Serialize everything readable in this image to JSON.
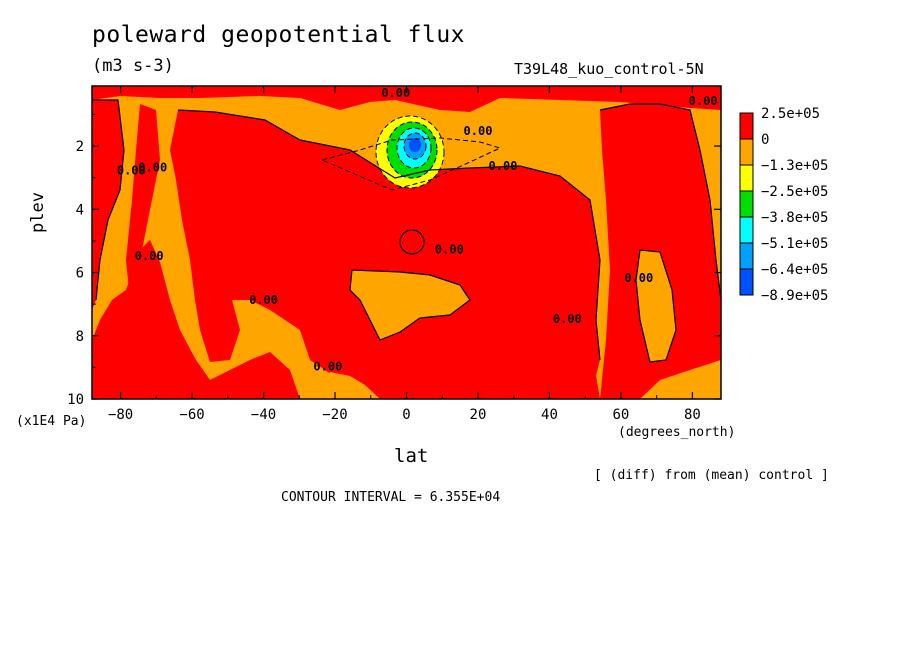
{
  "title": "poleward geopotential flux",
  "units": "(m3 s-3)",
  "run_label": "T39L48_kuo_control-5N",
  "note": "[ (diff) from (mean) control ]",
  "contour_interval_text": "CONTOUR INTERVAL = 6.355E+04",
  "colors": {
    "red": "#ff0000",
    "orange": "#ffa500",
    "yellow": "#ffff00",
    "green": "#00e000",
    "cyan": "#00ffff",
    "midblue": "#00a0ff",
    "blue": "#0050ff"
  },
  "chart_data": {
    "type": "heatmap",
    "title": "poleward geopotential flux",
    "xlabel": "lat",
    "xunit": "(degrees_north)",
    "ylabel": "plev",
    "yunit": "(x1E4 Pa)",
    "xlim": [
      -88,
      88
    ],
    "ylim": [
      10,
      0.1
    ],
    "y_inverted": true,
    "x_ticks": [
      -80,
      -60,
      -40,
      -20,
      0,
      20,
      40,
      60,
      80
    ],
    "x_tick_labels": [
      "−80",
      "−60",
      "−40",
      "−20",
      "0",
      "20",
      "40",
      "60",
      "80"
    ],
    "y_ticks": [
      2,
      4,
      6,
      8,
      10
    ],
    "y_tick_labels": [
      "2",
      "4",
      "6",
      "8",
      "10"
    ],
    "colorbar": {
      "placement": "right",
      "labels": [
        "2.5e+05",
        "0",
        "−1.3e+05",
        "−2.5e+05",
        "−3.8e+05",
        "−5.1e+05",
        "−6.4e+05",
        "−8.9e+05"
      ],
      "colors": [
        "#ff0000",
        "#ffa500",
        "#ffff00",
        "#00e000",
        "#00ffff",
        "#00a0ff",
        "#0050ff"
      ]
    },
    "contour_label": "0.00",
    "contour_labels": [
      {
        "text": "0.00",
        "lat": -3,
        "plev": 0.45
      },
      {
        "text": "0.00",
        "lat": 20,
        "plev": 1.65
      },
      {
        "text": "0.00",
        "lat": 27,
        "plev": 2.75
      },
      {
        "text": "0.00",
        "lat": 83,
        "plev": 0.7
      },
      {
        "text": "0.00",
        "lat": -77,
        "plev": 2.9
      },
      {
        "text": "0.00",
        "lat": -71,
        "plev": 2.8
      },
      {
        "text": "0.00",
        "lat": -72,
        "plev": 5.6
      },
      {
        "text": "0.00",
        "lat": -40,
        "plev": 7.0
      },
      {
        "text": "0.00",
        "lat": 12,
        "plev": 5.4
      },
      {
        "text": "0.00",
        "lat": -22,
        "plev": 9.1
      },
      {
        "text": "0.00",
        "lat": 45,
        "plev": 7.6
      },
      {
        "text": "0.00",
        "lat": 65,
        "plev": 6.3
      }
    ],
    "anomaly_center": {
      "lat": 2,
      "plev": 2.0,
      "min_value": -890000.0
    },
    "contour_interval": 63550
  }
}
